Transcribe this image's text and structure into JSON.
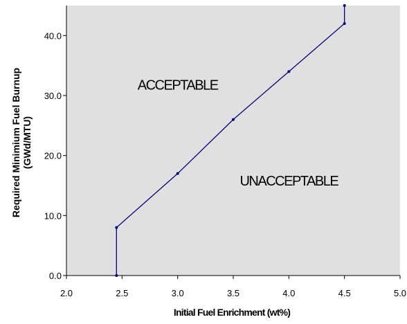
{
  "chart_data": {
    "type": "line",
    "title": "",
    "xlabel": "Initial Fuel Enrichment (wt%)",
    "ylabel_line1": "Required Minimium Fuel Burnup",
    "ylabel_line2": "(GWd/MTU)",
    "xlim": [
      2.0,
      5.0
    ],
    "ylim": [
      0.0,
      45.0
    ],
    "x_ticks": [
      2.0,
      2.5,
      3.0,
      3.5,
      4.0,
      4.5,
      5.0
    ],
    "x_tick_labels": [
      "2.0",
      "2.5",
      "3.0",
      "3.5",
      "4.0",
      "4.5",
      "5.0"
    ],
    "y_ticks": [
      0.0,
      10.0,
      20.0,
      30.0,
      40.0
    ],
    "y_tick_labels": [
      "0.0",
      "10.0",
      "20.0",
      "30.0",
      "40.0"
    ],
    "grid": false,
    "series": [
      {
        "points": [
          {
            "x": 2.45,
            "y": 0.0
          },
          {
            "x": 2.45,
            "y": 8.0
          },
          {
            "x": 3.0,
            "y": 17.0
          },
          {
            "x": 3.5,
            "y": 26.0
          },
          {
            "x": 4.0,
            "y": 34.0
          },
          {
            "x": 4.5,
            "y": 42.0
          },
          {
            "x": 4.5,
            "y": 45.0
          }
        ]
      }
    ],
    "region_labels": [
      {
        "text": "ACCEPTABLE",
        "x": 3.0,
        "y": 31.0
      },
      {
        "text": "UNACCEPTABLE",
        "x": 4.0,
        "y": 15.0
      }
    ],
    "colors": {
      "plot_background": "#e0e0e0",
      "line": "#000080",
      "axis": "#000000",
      "text": "#000000"
    }
  }
}
